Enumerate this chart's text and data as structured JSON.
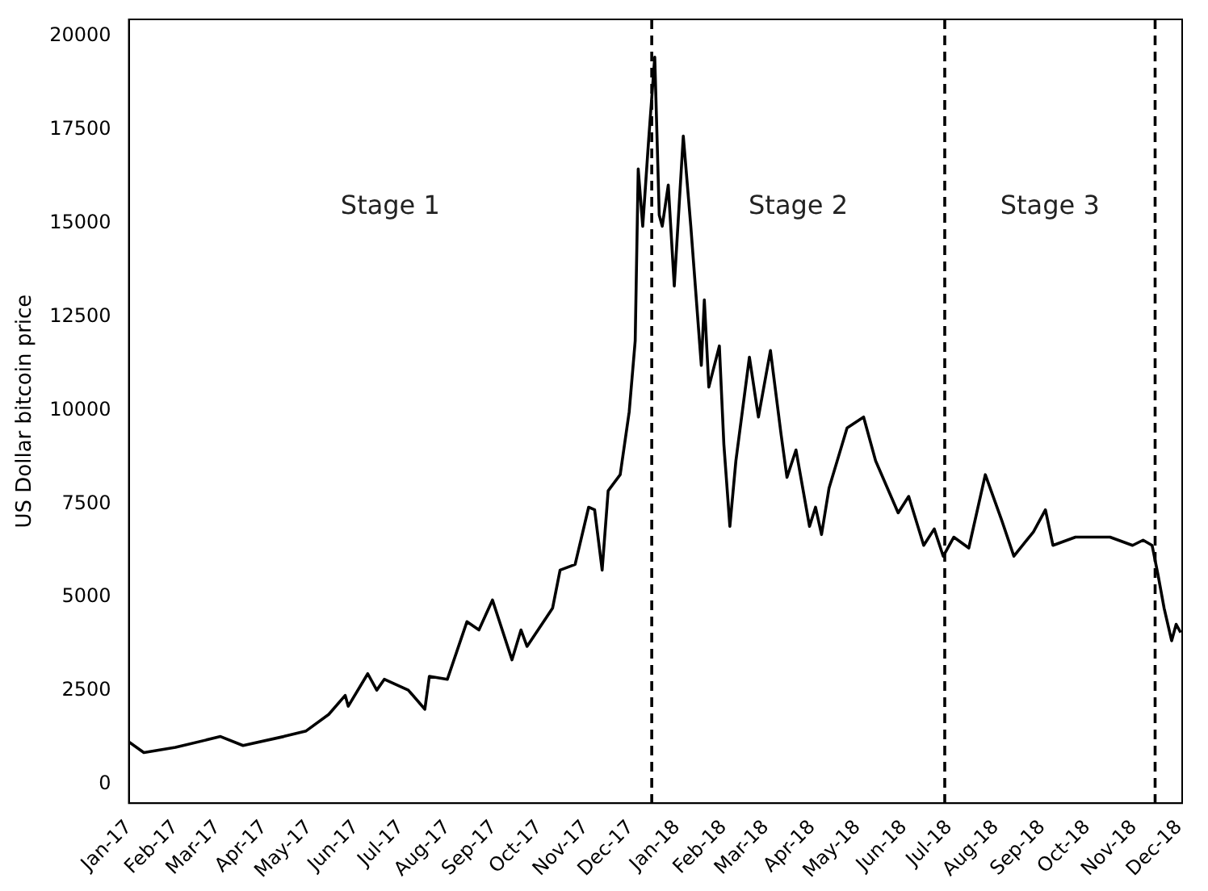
{
  "chart_data": {
    "type": "line",
    "ylabel": "US Dollar bitcoin price",
    "x": [
      "2017-01-01",
      "2017-01-11",
      "2017-02-01",
      "2017-03-03",
      "2017-03-18",
      "2017-04-14",
      "2017-04-29",
      "2017-05-14",
      "2017-05-25",
      "2017-05-27",
      "2017-06-09",
      "2017-06-15",
      "2017-06-20",
      "2017-07-06",
      "2017-07-17",
      "2017-07-20",
      "2017-08-01",
      "2017-08-14",
      "2017-08-22",
      "2017-08-31",
      "2017-09-13",
      "2017-09-19",
      "2017-09-23",
      "2017-10-10",
      "2017-10-15",
      "2017-10-25",
      "2017-11-03",
      "2017-11-07",
      "2017-11-12",
      "2017-11-16",
      "2017-11-24",
      "2017-11-30",
      "2017-12-04",
      "2017-12-06",
      "2017-12-09",
      "2017-12-13",
      "2017-12-17",
      "2017-12-20",
      "2017-12-22",
      "2017-12-26",
      "2017-12-30",
      "2018-01-05",
      "2018-01-10",
      "2018-01-17",
      "2018-01-19",
      "2018-01-22",
      "2018-01-29",
      "2018-02-01",
      "2018-02-05",
      "2018-02-09",
      "2018-02-18",
      "2018-02-24",
      "2018-03-04",
      "2018-03-11",
      "2018-03-15",
      "2018-03-21",
      "2018-03-30",
      "2018-04-03",
      "2018-04-07",
      "2018-04-12",
      "2018-04-24",
      "2018-05-05",
      "2018-05-13",
      "2018-05-28",
      "2018-06-04",
      "2018-06-14",
      "2018-06-21",
      "2018-06-27",
      "2018-07-04",
      "2018-07-14",
      "2018-07-25",
      "2018-08-05",
      "2018-08-13",
      "2018-08-26",
      "2018-09-03",
      "2018-09-08",
      "2018-09-23",
      "2018-10-16",
      "2018-10-31",
      "2018-11-07",
      "2018-11-13",
      "2018-11-17",
      "2018-11-21",
      "2018-11-26",
      "2018-11-29",
      "2018-12-02"
    ],
    "series": [
      {
        "color": "#000000",
        "values": [
          1140,
          850,
          990,
          1280,
          1040,
          1280,
          1430,
          1870,
          2380,
          2090,
          2960,
          2520,
          2810,
          2520,
          2010,
          2890,
          2810,
          4350,
          4130,
          4930,
          3330,
          4130,
          3690,
          4710,
          5730,
          5880,
          7410,
          7340,
          5730,
          7850,
          8280,
          9960,
          11860,
          16450,
          14920,
          17260,
          19440,
          15220,
          14920,
          16020,
          13320,
          17330,
          14920,
          11200,
          12950,
          10620,
          11720,
          9090,
          6900,
          8650,
          11420,
          9820,
          11600,
          9380,
          8210,
          8940,
          6900,
          7410,
          6680,
          7920,
          9530,
          9820,
          8650,
          7260,
          7700,
          6390,
          6830,
          6100,
          6610,
          6320,
          8280,
          7050,
          6100,
          6750,
          7340,
          6390,
          6610,
          6610,
          6390,
          6530,
          6390,
          5590,
          4710,
          3840,
          4280,
          4060
        ]
      }
    ],
    "xlim": [
      "2017-01-01",
      "2018-12-03"
    ],
    "xticks": [
      {
        "value": "2017-01-01",
        "label": "Jan-17"
      },
      {
        "value": "2017-02-01",
        "label": "Feb-17"
      },
      {
        "value": "2017-03-01",
        "label": "Mar-17"
      },
      {
        "value": "2017-04-01",
        "label": "Apr-17"
      },
      {
        "value": "2017-05-01",
        "label": "May-17"
      },
      {
        "value": "2017-06-01",
        "label": "Jun-17"
      },
      {
        "value": "2017-07-01",
        "label": "Jul-17"
      },
      {
        "value": "2017-08-01",
        "label": "Aug-17"
      },
      {
        "value": "2017-09-01",
        "label": "Sep-17"
      },
      {
        "value": "2017-10-01",
        "label": "Oct-17"
      },
      {
        "value": "2017-11-01",
        "label": "Nov-17"
      },
      {
        "value": "2017-12-01",
        "label": "Dec-17"
      },
      {
        "value": "2018-01-01",
        "label": "Jan-18"
      },
      {
        "value": "2018-02-01",
        "label": "Feb-18"
      },
      {
        "value": "2018-03-01",
        "label": "Mar-18"
      },
      {
        "value": "2018-04-01",
        "label": "Apr-18"
      },
      {
        "value": "2018-05-01",
        "label": "May-18"
      },
      {
        "value": "2018-06-01",
        "label": "Jun-18"
      },
      {
        "value": "2018-07-01",
        "label": "Jul-18"
      },
      {
        "value": "2018-08-01",
        "label": "Aug-18"
      },
      {
        "value": "2018-09-01",
        "label": "Sep-18"
      },
      {
        "value": "2018-10-01",
        "label": "Oct-18"
      },
      {
        "value": "2018-11-01",
        "label": "Nov-18"
      },
      {
        "value": "2018-12-01",
        "label": "Dec-18"
      }
    ],
    "ylim": [
      -500,
      20450
    ],
    "yticks": [
      0,
      2500,
      5000,
      7500,
      10000,
      12500,
      15000,
      17500,
      20000
    ],
    "ref_lines": [
      {
        "axis": "x",
        "value": "2017-12-15",
        "color": "#000000",
        "line_style": "dashed"
      },
      {
        "axis": "x",
        "value": "2018-06-28",
        "color": "#000000",
        "line_style": "dashed"
      },
      {
        "axis": "x",
        "value": "2018-11-15",
        "color": "#000000",
        "line_style": "dashed"
      }
    ],
    "annotations": [
      "Stage 1",
      "Stage 2",
      "Stage 3"
    ],
    "grid": false,
    "legend": false,
    "marker": "none",
    "line_style": "solid"
  }
}
